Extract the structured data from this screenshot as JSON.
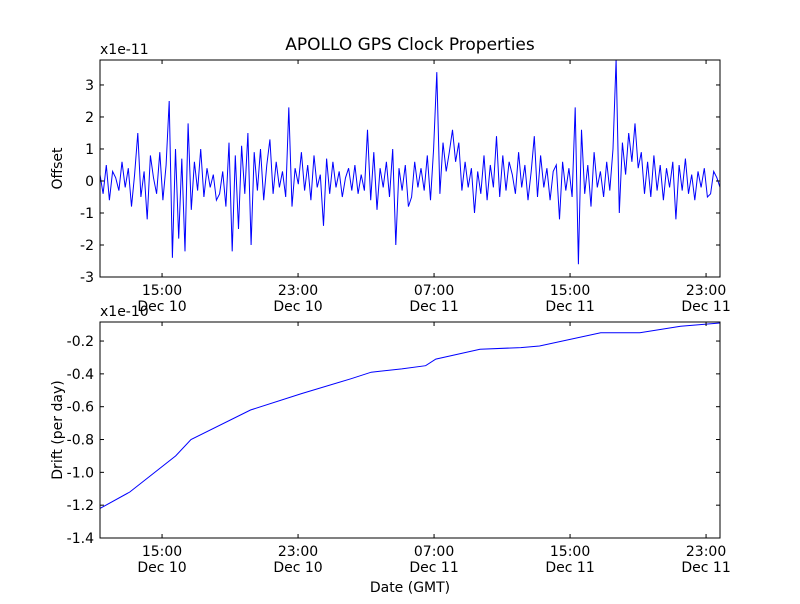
{
  "chart_data": [
    {
      "type": "line",
      "title": "APOLLO GPS Clock Properties",
      "ylabel": "Offset",
      "xlabel": "",
      "scale_label": "x1e-11",
      "ylim": [
        -3,
        3.78
      ],
      "yticks": [
        -3,
        -2,
        -1,
        0,
        1,
        2,
        3
      ],
      "ytick_labels": [
        "-3",
        "-2",
        "-1",
        "0",
        "1",
        "2",
        "3"
      ],
      "x_unit": "hours since Dec 10 00:00 GMT",
      "xlim": [
        11.35,
        47.82
      ],
      "xticks": [
        15,
        23,
        31,
        39,
        47
      ],
      "xtick_labels": [
        [
          "15:00",
          "Dec 10"
        ],
        [
          "23:00",
          "Dec 10"
        ],
        [
          "07:00",
          "Dec 11"
        ],
        [
          "15:00",
          "Dec 11"
        ],
        [
          "23:00",
          "Dec 11"
        ]
      ],
      "color": "#0000ff",
      "series": [
        {
          "name": "Offset",
          "x_start": 11.35,
          "x_end": 47.82,
          "values": [
            0.2,
            -0.4,
            0.5,
            -0.6,
            0.3,
            0.1,
            -0.3,
            0.6,
            -0.2,
            0.4,
            -0.8,
            0.2,
            1.5,
            -0.5,
            0.3,
            -1.2,
            0.8,
            0.1,
            -0.4,
            0.9,
            -0.6,
            0.5,
            2.5,
            -2.4,
            1.0,
            -1.8,
            0.7,
            -2.2,
            1.8,
            -0.9,
            0.6,
            -0.3,
            1.0,
            -0.5,
            0.4,
            -0.2,
            0.2,
            -0.6,
            -0.4,
            0.3,
            -0.8,
            1.2,
            -2.2,
            0.8,
            -1.5,
            1.1,
            -0.4,
            1.5,
            -2.0,
            0.9,
            -0.3,
            1.0,
            -0.6,
            0.5,
            1.3,
            -0.4,
            0.6,
            -0.2,
            0.3,
            -0.5,
            2.3,
            -0.8,
            0.4,
            -0.1,
            0.9,
            -0.3,
            0.5,
            -0.6,
            0.8,
            -0.2,
            0.2,
            -1.4,
            0.7,
            -0.4,
            0.6,
            -0.2,
            0.3,
            -0.5,
            0.1,
            0.4,
            -0.3,
            0.5,
            -0.4,
            0.2,
            -0.3,
            1.6,
            -0.6,
            0.9,
            -0.9,
            0.4,
            -0.2,
            0.6,
            -0.5,
            1.0,
            -2.0,
            0.4,
            -0.3,
            0.5,
            -0.8,
            -0.5,
            0.6,
            -0.2,
            0.4,
            -0.3,
            0.8,
            -0.6,
            1.0,
            3.4,
            -0.4,
            1.2,
            0.3,
            0.9,
            1.6,
            0.6,
            1.2,
            -0.3,
            0.6,
            -0.2,
            0.4,
            -1.0,
            0.3,
            -0.4,
            0.8,
            -0.6,
            0.5,
            -0.2,
            1.4,
            -0.5,
            0.8,
            -0.3,
            0.6,
            0.2,
            -0.4,
            0.9,
            -0.2,
            0.5,
            -0.6,
            0.3,
            1.4,
            -0.5,
            0.8,
            -0.2,
            0.4,
            -0.6,
            0.3,
            0.5,
            -1.2,
            0.6,
            -0.3,
            0.4,
            -0.5,
            2.3,
            -2.6,
            1.6,
            -0.4,
            0.5,
            -0.8,
            0.9,
            -0.2,
            0.3,
            -0.5,
            0.6,
            -0.3,
            1.0,
            3.8,
            -1.0,
            1.2,
            0.2,
            1.5,
            0.6,
            1.8,
            0.4,
            0.9,
            -0.4,
            0.6,
            -0.5,
            0.8,
            -0.3,
            0.5,
            -0.6,
            0.4,
            -0.2,
            0.6,
            -1.2,
            0.5,
            -0.3,
            0.7,
            -0.4,
            0.2,
            -0.6,
            0.3,
            -0.2,
            0.4,
            -0.5,
            -0.4,
            0.3,
            0.1,
            -0.2
          ]
        }
      ]
    },
    {
      "type": "line",
      "title": "",
      "ylabel": "Drift (per day)",
      "xlabel": "Date (GMT)",
      "scale_label": "x1e-10",
      "ylim": [
        -1.4,
        -0.084
      ],
      "yticks": [
        -1.4,
        -1.2,
        -1.0,
        -0.8,
        -0.6,
        -0.4,
        -0.2
      ],
      "ytick_labels": [
        "-1.4",
        "-1.2",
        "-1.0",
        "-0.8",
        "-0.6",
        "-0.4",
        "-0.2"
      ],
      "x_unit": "hours since Dec 10 00:00 GMT",
      "xlim": [
        11.35,
        47.82
      ],
      "xticks": [
        15,
        23,
        31,
        39,
        47
      ],
      "xtick_labels": [
        [
          "15:00",
          "Dec 10"
        ],
        [
          "23:00",
          "Dec 10"
        ],
        [
          "07:00",
          "Dec 11"
        ],
        [
          "15:00",
          "Dec 11"
        ],
        [
          "23:00",
          "Dec 11"
        ]
      ],
      "color": "#0000ff",
      "series": [
        {
          "name": "Drift",
          "x": [
            11.35,
            13.1,
            15.8,
            16.7,
            20.2,
            23.2,
            26.1,
            27.3,
            29.1,
            30.5,
            31.1,
            33.7,
            36.1,
            37.2,
            40.8,
            43.1,
            45.5,
            47.82
          ],
          "y": [
            -1.22,
            -1.12,
            -0.9,
            -0.8,
            -0.62,
            -0.52,
            -0.43,
            -0.39,
            -0.37,
            -0.35,
            -0.31,
            -0.25,
            -0.24,
            -0.23,
            -0.15,
            -0.15,
            -0.11,
            -0.09
          ]
        }
      ]
    }
  ]
}
